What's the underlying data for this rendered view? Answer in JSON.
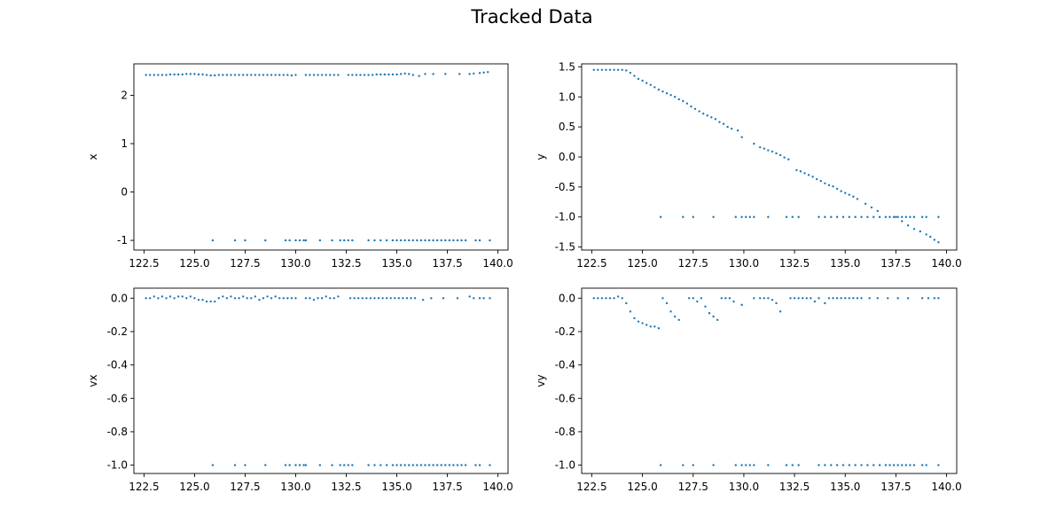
{
  "figure": {
    "title": "Tracked Data"
  },
  "chart_data": [
    {
      "type": "scatter",
      "ylabel": "x",
      "xlim": [
        122.0,
        140.5
      ],
      "ylim": [
        -1.2,
        2.65
      ],
      "xticks": [
        122.5,
        125.0,
        127.5,
        130.0,
        132.5,
        135.0,
        137.5,
        140.0
      ],
      "yticks": [
        -1,
        0,
        1,
        2
      ],
      "color": "#1f77b4",
      "series": [
        {
          "x": [
            122.6,
            122.8,
            123.0,
            123.2,
            123.4,
            123.6,
            123.8,
            124.0,
            124.2,
            124.4,
            124.6,
            124.8,
            125.0,
            125.2,
            125.4,
            125.6,
            125.8,
            126.0,
            126.2,
            126.4,
            126.6,
            126.8,
            127.0,
            127.2,
            127.4,
            127.6,
            127.8,
            128.0,
            128.2,
            128.4,
            128.6,
            128.8,
            129.0,
            129.2,
            129.4,
            129.6,
            129.8,
            130.0,
            130.5,
            130.7,
            130.9,
            131.1,
            131.3,
            131.5,
            131.7,
            131.9,
            132.1,
            132.6,
            132.8,
            133.0,
            133.2,
            133.4,
            133.6,
            133.8,
            134.0,
            134.2,
            134.4,
            134.6,
            134.8,
            135.0,
            135.2,
            135.4,
            135.6,
            135.8,
            136.1,
            136.4,
            136.8,
            137.4,
            138.1,
            138.6,
            138.8,
            139.1,
            139.3,
            139.5
          ],
          "y": [
            2.42,
            2.42,
            2.42,
            2.42,
            2.42,
            2.42,
            2.43,
            2.43,
            2.43,
            2.43,
            2.44,
            2.44,
            2.44,
            2.43,
            2.43,
            2.42,
            2.41,
            2.41,
            2.42,
            2.42,
            2.42,
            2.42,
            2.42,
            2.42,
            2.42,
            2.42,
            2.42,
            2.42,
            2.42,
            2.42,
            2.42,
            2.42,
            2.42,
            2.42,
            2.42,
            2.42,
            2.41,
            2.42,
            2.42,
            2.42,
            2.42,
            2.42,
            2.42,
            2.42,
            2.42,
            2.42,
            2.42,
            2.42,
            2.42,
            2.42,
            2.42,
            2.42,
            2.42,
            2.42,
            2.43,
            2.43,
            2.43,
            2.43,
            2.43,
            2.43,
            2.44,
            2.45,
            2.44,
            2.42,
            2.4,
            2.44,
            2.44,
            2.44,
            2.44,
            2.44,
            2.45,
            2.46,
            2.47,
            2.48
          ]
        },
        {
          "x": [
            125.9,
            127.0,
            127.5,
            128.5,
            129.5,
            129.7,
            130.0,
            130.2,
            130.4,
            130.5,
            131.2,
            131.8,
            132.2,
            132.4,
            132.6,
            132.8,
            133.6,
            133.9,
            134.2,
            134.5,
            134.8,
            135.0,
            135.2,
            135.4,
            135.6,
            135.8,
            136.0,
            136.2,
            136.4,
            136.6,
            136.8,
            137.0,
            137.2,
            137.4,
            137.6,
            137.8,
            138.0,
            138.2,
            138.4,
            138.9,
            139.1,
            139.6
          ],
          "y": [
            -1,
            -1,
            -1,
            -1,
            -1,
            -1,
            -1,
            -1,
            -1,
            -1,
            -1,
            -1,
            -1,
            -1,
            -1,
            -1,
            -1,
            -1,
            -1,
            -1,
            -1,
            -1,
            -1,
            -1,
            -1,
            -1,
            -1,
            -1,
            -1,
            -1,
            -1,
            -1,
            -1,
            -1,
            -1,
            -1,
            -1,
            -1,
            -1,
            -1,
            -1,
            -1
          ]
        }
      ]
    },
    {
      "type": "scatter",
      "ylabel": "y",
      "xlim": [
        122.0,
        140.5
      ],
      "ylim": [
        -1.55,
        1.55
      ],
      "xticks": [
        122.5,
        125.0,
        127.5,
        130.0,
        132.5,
        135.0,
        137.5,
        140.0
      ],
      "yticks": [
        -1.5,
        -1.0,
        -0.5,
        0.0,
        0.5,
        1.0,
        1.5
      ],
      "color": "#1f77b4",
      "series": [
        {
          "x": [
            122.6,
            122.8,
            123.0,
            123.2,
            123.4,
            123.6,
            123.8,
            124.0,
            124.2,
            124.4,
            124.6,
            124.8,
            125.0,
            125.2,
            125.4,
            125.6,
            125.8,
            126.0,
            126.2,
            126.4,
            126.6,
            126.8,
            127.0,
            127.2,
            127.4,
            127.6,
            127.8,
            128.0,
            128.2,
            128.4,
            128.6,
            128.8,
            129.0,
            129.2,
            129.4,
            129.7,
            129.9,
            130.5,
            130.8,
            131.0,
            131.2,
            131.4,
            131.6,
            131.8,
            132.0,
            132.2,
            132.6,
            132.8,
            133.0,
            133.2,
            133.4,
            133.6,
            133.8,
            134.0,
            134.2,
            134.4,
            134.6,
            134.8,
            135.0,
            135.2,
            135.4,
            135.6,
            136.0,
            136.3,
            136.6,
            137.5,
            137.8,
            138.1,
            138.4,
            138.7,
            139.0,
            139.2,
            139.4,
            139.6
          ],
          "y": [
            1.45,
            1.45,
            1.45,
            1.45,
            1.45,
            1.45,
            1.45,
            1.45,
            1.44,
            1.4,
            1.35,
            1.3,
            1.27,
            1.23,
            1.2,
            1.16,
            1.12,
            1.09,
            1.06,
            1.03,
            1.0,
            0.96,
            0.93,
            0.89,
            0.84,
            0.8,
            0.76,
            0.72,
            0.69,
            0.66,
            0.63,
            0.58,
            0.55,
            0.5,
            0.47,
            0.44,
            0.33,
            0.22,
            0.16,
            0.14,
            0.11,
            0.09,
            0.06,
            0.03,
            -0.01,
            -0.04,
            -0.22,
            -0.24,
            -0.27,
            -0.3,
            -0.33,
            -0.37,
            -0.4,
            -0.44,
            -0.47,
            -0.49,
            -0.53,
            -0.57,
            -0.6,
            -0.63,
            -0.66,
            -0.7,
            -0.78,
            -0.84,
            -0.9,
            -1.0,
            -1.07,
            -1.14,
            -1.2,
            -1.24,
            -1.29,
            -1.33,
            -1.38,
            -1.42
          ]
        },
        {
          "x": [
            125.9,
            127.0,
            127.5,
            128.5,
            129.6,
            129.9,
            130.1,
            130.3,
            130.5,
            131.2,
            132.1,
            132.4,
            132.7,
            133.7,
            134.0,
            134.3,
            134.6,
            134.9,
            135.2,
            135.5,
            135.8,
            136.1,
            136.4,
            136.7,
            137.0,
            137.2,
            137.4,
            137.6,
            137.8,
            138.0,
            138.2,
            138.4,
            138.8,
            139.0,
            139.6
          ],
          "y": [
            -1,
            -1,
            -1,
            -1,
            -1,
            -1,
            -1,
            -1,
            -1,
            -1,
            -1,
            -1,
            -1,
            -1,
            -1,
            -1,
            -1,
            -1,
            -1,
            -1,
            -1,
            -1,
            -1,
            -1,
            -1,
            -1,
            -1,
            -1,
            -1,
            -1,
            -1,
            -1,
            -1,
            -1,
            -1
          ]
        }
      ]
    },
    {
      "type": "scatter",
      "ylabel": "vx",
      "xlim": [
        122.0,
        140.5
      ],
      "ylim": [
        -1.05,
        0.06
      ],
      "xticks": [
        122.5,
        125.0,
        127.5,
        130.0,
        132.5,
        135.0,
        137.5,
        140.0
      ],
      "yticks": [
        -1.0,
        -0.8,
        -0.6,
        -0.4,
        -0.2,
        0.0
      ],
      "color": "#1f77b4",
      "series": [
        {
          "x": [
            122.6,
            122.8,
            123.0,
            123.2,
            123.4,
            123.6,
            123.8,
            124.0,
            124.2,
            124.4,
            124.6,
            124.8,
            125.0,
            125.2,
            125.4,
            125.6,
            125.8,
            126.0,
            126.2,
            126.4,
            126.6,
            126.8,
            127.0,
            127.2,
            127.4,
            127.6,
            127.8,
            128.0,
            128.2,
            128.4,
            128.6,
            128.8,
            129.0,
            129.2,
            129.4,
            129.6,
            129.8,
            130.0,
            130.5,
            130.7,
            130.9,
            131.1,
            131.3,
            131.5,
            131.7,
            131.9,
            132.1,
            132.7,
            132.9,
            133.1,
            133.3,
            133.5,
            133.7,
            133.9,
            134.1,
            134.3,
            134.5,
            134.7,
            134.9,
            135.1,
            135.3,
            135.5,
            135.7,
            135.9,
            136.3,
            136.7,
            137.3,
            138.0,
            138.6,
            138.8,
            139.1,
            139.3,
            139.6
          ],
          "y": [
            0.0,
            0.0,
            0.01,
            0.0,
            0.01,
            0.0,
            0.01,
            0.0,
            0.01,
            0.01,
            0.0,
            0.01,
            0.0,
            -0.01,
            -0.01,
            -0.02,
            -0.02,
            -0.02,
            0.0,
            0.01,
            0.0,
            0.01,
            0.0,
            0.0,
            0.01,
            0.0,
            0.0,
            0.01,
            -0.01,
            0.0,
            0.01,
            0.0,
            0.01,
            0.0,
            0.0,
            0.0,
            0.0,
            0.0,
            0.0,
            0.0,
            -0.01,
            0.0,
            0.0,
            0.01,
            0.0,
            0.0,
            0.01,
            0.0,
            0.0,
            0.0,
            0.0,
            0.0,
            0.0,
            0.0,
            0.0,
            0.0,
            0.0,
            0.0,
            0.0,
            0.0,
            0.0,
            0.0,
            0.0,
            0.0,
            -0.01,
            0.0,
            0.0,
            0.0,
            0.01,
            0.0,
            0.0,
            0.0,
            0.0
          ]
        },
        {
          "x": [
            125.9,
            127.0,
            127.5,
            128.5,
            129.5,
            129.7,
            130.0,
            130.2,
            130.4,
            130.5,
            131.2,
            131.8,
            132.2,
            132.4,
            132.6,
            132.8,
            133.6,
            133.9,
            134.2,
            134.5,
            134.8,
            135.0,
            135.2,
            135.4,
            135.6,
            135.8,
            136.0,
            136.2,
            136.4,
            136.6,
            136.8,
            137.0,
            137.2,
            137.4,
            137.6,
            137.8,
            138.0,
            138.2,
            138.4,
            138.9,
            139.1,
            139.6
          ],
          "y": [
            -1,
            -1,
            -1,
            -1,
            -1,
            -1,
            -1,
            -1,
            -1,
            -1,
            -1,
            -1,
            -1,
            -1,
            -1,
            -1,
            -1,
            -1,
            -1,
            -1,
            -1,
            -1,
            -1,
            -1,
            -1,
            -1,
            -1,
            -1,
            -1,
            -1,
            -1,
            -1,
            -1,
            -1,
            -1,
            -1,
            -1,
            -1,
            -1,
            -1,
            -1,
            -1
          ]
        }
      ]
    },
    {
      "type": "scatter",
      "ylabel": "vy",
      "xlim": [
        122.0,
        140.5
      ],
      "ylim": [
        -1.05,
        0.06
      ],
      "xticks": [
        122.5,
        125.0,
        127.5,
        130.0,
        132.5,
        135.0,
        137.5,
        140.0
      ],
      "yticks": [
        -1.0,
        -0.8,
        -0.6,
        -0.4,
        -0.2,
        0.0
      ],
      "color": "#1f77b4",
      "series": [
        {
          "x": [
            122.6,
            122.8,
            123.0,
            123.2,
            123.4,
            123.6,
            123.8,
            124.0,
            124.2,
            124.4,
            124.6,
            124.8,
            125.0,
            125.2,
            125.4,
            125.6,
            125.8,
            126.0,
            126.2,
            126.4,
            126.6,
            126.8,
            127.3,
            127.5,
            127.7,
            127.9,
            128.1,
            128.3,
            128.5,
            128.7,
            128.9,
            129.1,
            129.3,
            129.5,
            129.9,
            130.5,
            130.8,
            131.0,
            131.2,
            131.4,
            131.6,
            131.8,
            132.3,
            132.5,
            132.7,
            132.9,
            133.1,
            133.3,
            133.5,
            133.7,
            134.0,
            134.2,
            134.4,
            134.6,
            134.8,
            135.0,
            135.2,
            135.4,
            135.6,
            135.8,
            136.2,
            136.6,
            137.1,
            137.6,
            138.1,
            138.8,
            139.1,
            139.4,
            139.6
          ],
          "y": [
            0.0,
            0.0,
            0.0,
            0.0,
            0.0,
            0.0,
            0.01,
            0.0,
            -0.03,
            -0.08,
            -0.12,
            -0.14,
            -0.15,
            -0.16,
            -0.17,
            -0.17,
            -0.18,
            0.0,
            -0.03,
            -0.08,
            -0.11,
            -0.13,
            0.0,
            0.0,
            -0.02,
            0.0,
            -0.05,
            -0.09,
            -0.11,
            -0.13,
            0.0,
            0.0,
            0.0,
            -0.02,
            -0.04,
            0.0,
            0.0,
            0.0,
            0.0,
            -0.01,
            -0.03,
            -0.08,
            0.0,
            0.0,
            0.0,
            0.0,
            0.0,
            0.0,
            -0.02,
            0.0,
            -0.03,
            0.0,
            0.0,
            0.0,
            0.0,
            0.0,
            0.0,
            0.0,
            0.0,
            0.0,
            0.0,
            0.0,
            0.0,
            0.0,
            0.0,
            0.0,
            0.0,
            0.0,
            0.0
          ]
        },
        {
          "x": [
            125.9,
            127.0,
            127.5,
            128.5,
            129.6,
            129.9,
            130.1,
            130.3,
            130.5,
            131.2,
            132.1,
            132.4,
            132.7,
            133.7,
            134.0,
            134.3,
            134.6,
            134.9,
            135.2,
            135.5,
            135.8,
            136.1,
            136.4,
            136.7,
            137.0,
            137.2,
            137.4,
            137.6,
            137.8,
            138.0,
            138.2,
            138.4,
            138.8,
            139.0,
            139.6
          ],
          "y": [
            -1,
            -1,
            -1,
            -1,
            -1,
            -1,
            -1,
            -1,
            -1,
            -1,
            -1,
            -1,
            -1,
            -1,
            -1,
            -1,
            -1,
            -1,
            -1,
            -1,
            -1,
            -1,
            -1,
            -1,
            -1,
            -1,
            -1,
            -1,
            -1,
            -1,
            -1,
            -1,
            -1,
            -1,
            -1
          ]
        }
      ]
    }
  ]
}
